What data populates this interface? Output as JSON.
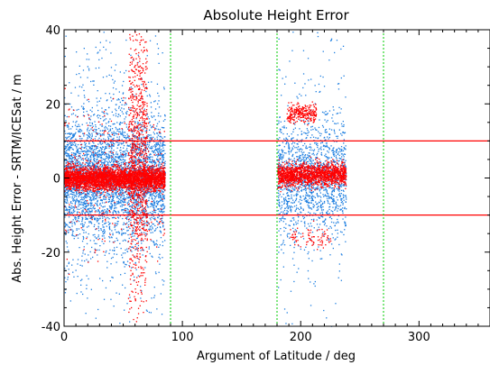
{
  "chart_data": {
    "type": "scatter",
    "title": "Absolute Height Error",
    "xlabel": "Argument of Latitude / deg",
    "ylabel": "Abs. Height Error - SRTM/ICESat / m",
    "xlim": [
      0,
      360
    ],
    "ylim": [
      -40,
      40
    ],
    "x_ticks": [
      0,
      100,
      200,
      300
    ],
    "y_ticks": [
      -40,
      -20,
      0,
      20,
      40
    ],
    "x_tick_labels": [
      "0",
      "100",
      "200",
      "300"
    ],
    "y_tick_labels": [
      "-40",
      "-20",
      "0",
      "20",
      "40"
    ],
    "grid": false,
    "legend": "none",
    "reference_lines": [
      {
        "axis": "y",
        "value": 10,
        "color": "#ff0000",
        "style": "solid"
      },
      {
        "axis": "y",
        "value": -10,
        "color": "#ff0000",
        "style": "solid"
      },
      {
        "axis": "x",
        "value": 0,
        "color": "#00cc00",
        "style": "dotted"
      },
      {
        "axis": "x",
        "value": 90,
        "color": "#00cc00",
        "style": "dotted"
      },
      {
        "axis": "x",
        "value": 180,
        "color": "#00cc00",
        "style": "dotted"
      },
      {
        "axis": "x",
        "value": 270,
        "color": "#00cc00",
        "style": "dotted"
      }
    ],
    "series": [
      {
        "color": "#1e7fe0",
        "clusters": [
          {
            "x_range": [
              0,
              85
            ],
            "y_center": 0,
            "y_spread": 16,
            "density": 3200
          },
          {
            "x_range": [
              0,
              85
            ],
            "y_center": 0,
            "y_spread": 40,
            "density": 900
          },
          {
            "x_range": [
              180,
              238
            ],
            "y_center": 0,
            "y_spread": 14,
            "density": 1300
          },
          {
            "x_range": [
              180,
              238
            ],
            "y_center": 0,
            "y_spread": 40,
            "density": 350
          }
        ]
      },
      {
        "color": "#ff0000",
        "clusters": [
          {
            "x_range": [
              0,
              85
            ],
            "y_center": 0,
            "y_spread": 3,
            "density": 3500
          },
          {
            "x_range": [
              54,
              70
            ],
            "y_center": 5,
            "y_spread": 38,
            "density": 900
          },
          {
            "x_range": [
              0,
              85
            ],
            "y_center": 0,
            "y_spread": 20,
            "density": 300
          },
          {
            "x_range": [
              180,
              238
            ],
            "y_center": 1,
            "y_spread": 3,
            "density": 1600
          },
          {
            "x_range": [
              188,
              213
            ],
            "y_center": 17.5,
            "y_spread": 2.5,
            "density": 260
          },
          {
            "x_range": [
              190,
              225
            ],
            "y_center": -16,
            "y_spread": 3,
            "density": 80
          }
        ]
      }
    ]
  }
}
